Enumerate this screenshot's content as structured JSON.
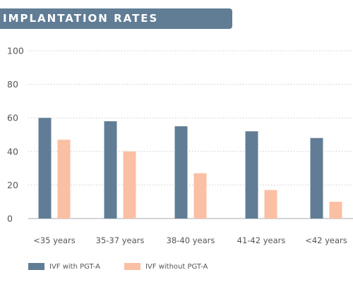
{
  "header": {
    "title": "IMPLANTATION RATES",
    "banner_color": "#617d95"
  },
  "chart_data": {
    "type": "bar",
    "title": "IMPLANTATION RATES",
    "categories": [
      "<35 years",
      "35-37 years",
      "38-40 years",
      "41-42 years",
      "<42 years"
    ],
    "series": [
      {
        "name": "IVF with PGT-A",
        "color": "#617d95",
        "values": [
          60,
          58,
          55,
          52,
          48
        ]
      },
      {
        "name": "IVF without PGT-A",
        "color": "#fbbfa3",
        "values": [
          47,
          40,
          27,
          17,
          10
        ]
      }
    ],
    "yticks": [
      0,
      20,
      40,
      60,
      80,
      100
    ],
    "ylim": [
      0,
      100
    ],
    "xlabel": "",
    "ylabel": "",
    "grid": "dotted horizontal",
    "legend_position": "bottom-left"
  }
}
